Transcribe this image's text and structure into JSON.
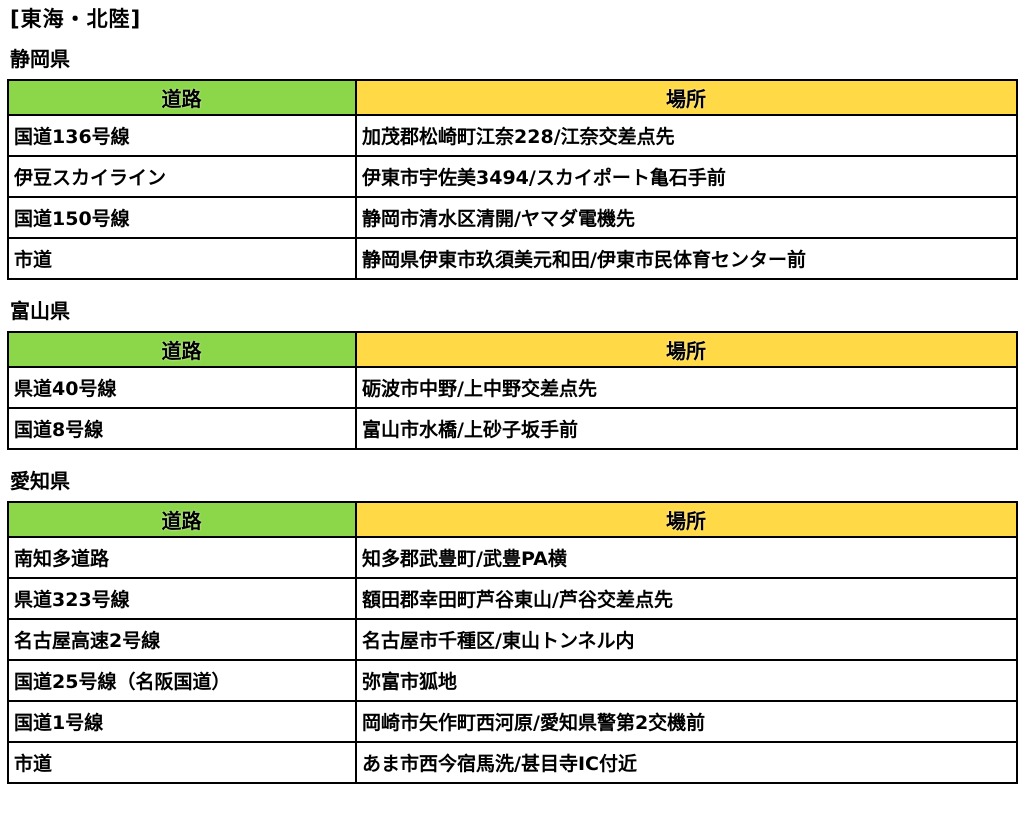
{
  "page": {
    "title": "[東海・北陸]"
  },
  "columns": {
    "road": "道路",
    "location": "場所"
  },
  "colors": {
    "road_header_bg": "#8CD649",
    "location_header_bg": "#FFD946",
    "border_color": "#000000",
    "text_color": "#000000"
  },
  "sections": [
    {
      "prefecture": "静岡県",
      "rows": [
        {
          "road": "国道136号線",
          "location": "加茂郡松崎町江奈228/江奈交差点先"
        },
        {
          "road": "伊豆スカイライン",
          "location": "伊東市宇佐美3494/スカイポート亀石手前"
        },
        {
          "road": "国道150号線",
          "location": "静岡市清水区清開/ヤマダ電機先"
        },
        {
          "road": "市道",
          "location": "静岡県伊東市玖須美元和田/伊東市民体育センター前"
        }
      ]
    },
    {
      "prefecture": "富山県",
      "rows": [
        {
          "road": "県道40号線",
          "location": "砺波市中野/上中野交差点先"
        },
        {
          "road": "国道8号線",
          "location": "富山市水橋/上砂子坂手前"
        }
      ]
    },
    {
      "prefecture": "愛知県",
      "rows": [
        {
          "road": "南知多道路",
          "location": "知多郡武豊町/武豊PA横"
        },
        {
          "road": "県道323号線",
          "location": "額田郡幸田町芦谷東山/芦谷交差点先"
        },
        {
          "road": "名古屋高速2号線",
          "location": "名古屋市千種区/東山トンネル内"
        },
        {
          "road": "国道25号線（名阪国道）",
          "location": "弥富市狐地"
        },
        {
          "road": "国道1号線",
          "location": "岡崎市矢作町西河原/愛知県警第2交機前"
        },
        {
          "road": "市道",
          "location": "あま市西今宿馬洗/甚目寺IC付近"
        }
      ]
    }
  ]
}
